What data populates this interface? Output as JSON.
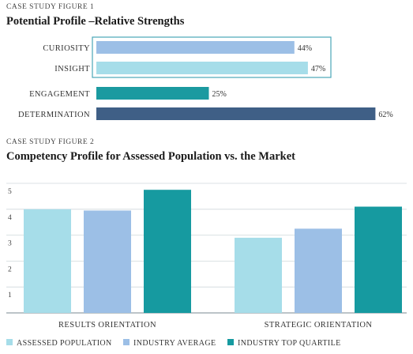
{
  "figure1": {
    "kicker": "CASE STUDY FIGURE 1",
    "title": "Potential Profile –Relative Strengths"
  },
  "figure2": {
    "kicker": "CASE STUDY FIGURE 2",
    "title": "Competency Profile for Assessed Population vs. the Market"
  },
  "colors": {
    "curiosity": "#9cbfe6",
    "insight": "#a6dde9",
    "engagement": "#1b9aa0",
    "determination": "#3f5f86",
    "highlight_box": "#4aa6b8",
    "assessed": "#a6dde9",
    "industry_avg": "#9cbfe6",
    "top_quartile": "#169aa0"
  },
  "chart_data": [
    {
      "type": "bar",
      "orientation": "horizontal",
      "title": "Potential Profile –Relative Strengths",
      "categories": [
        "CURIOSITY",
        "INSIGHT",
        "ENGAGEMENT",
        "DETERMINATION"
      ],
      "values": [
        44,
        47,
        25,
        62
      ],
      "value_labels": [
        "44%",
        "47%",
        "25%",
        "62%"
      ],
      "unit": "%",
      "highlighted": [
        "CURIOSITY",
        "INSIGHT"
      ]
    },
    {
      "type": "bar",
      "title": "Competency Profile for Assessed Population vs. the Market",
      "categories": [
        "RESULTS ORIENTATION",
        "STRATEGIC ORIENTATION"
      ],
      "series": [
        {
          "name": "ASSESSED POPULATION",
          "values": [
            4.0,
            2.9
          ]
        },
        {
          "name": "INDUSTRY AVERAGE",
          "values": [
            3.95,
            3.25
          ]
        },
        {
          "name": "INDUSTRY TOP QUARTILE",
          "values": [
            4.75,
            4.1
          ]
        }
      ],
      "yticks": [
        "1",
        "2",
        "3",
        "4",
        "5"
      ],
      "ylim": [
        0,
        5
      ],
      "grid": true,
      "legend_position": "bottom"
    }
  ]
}
